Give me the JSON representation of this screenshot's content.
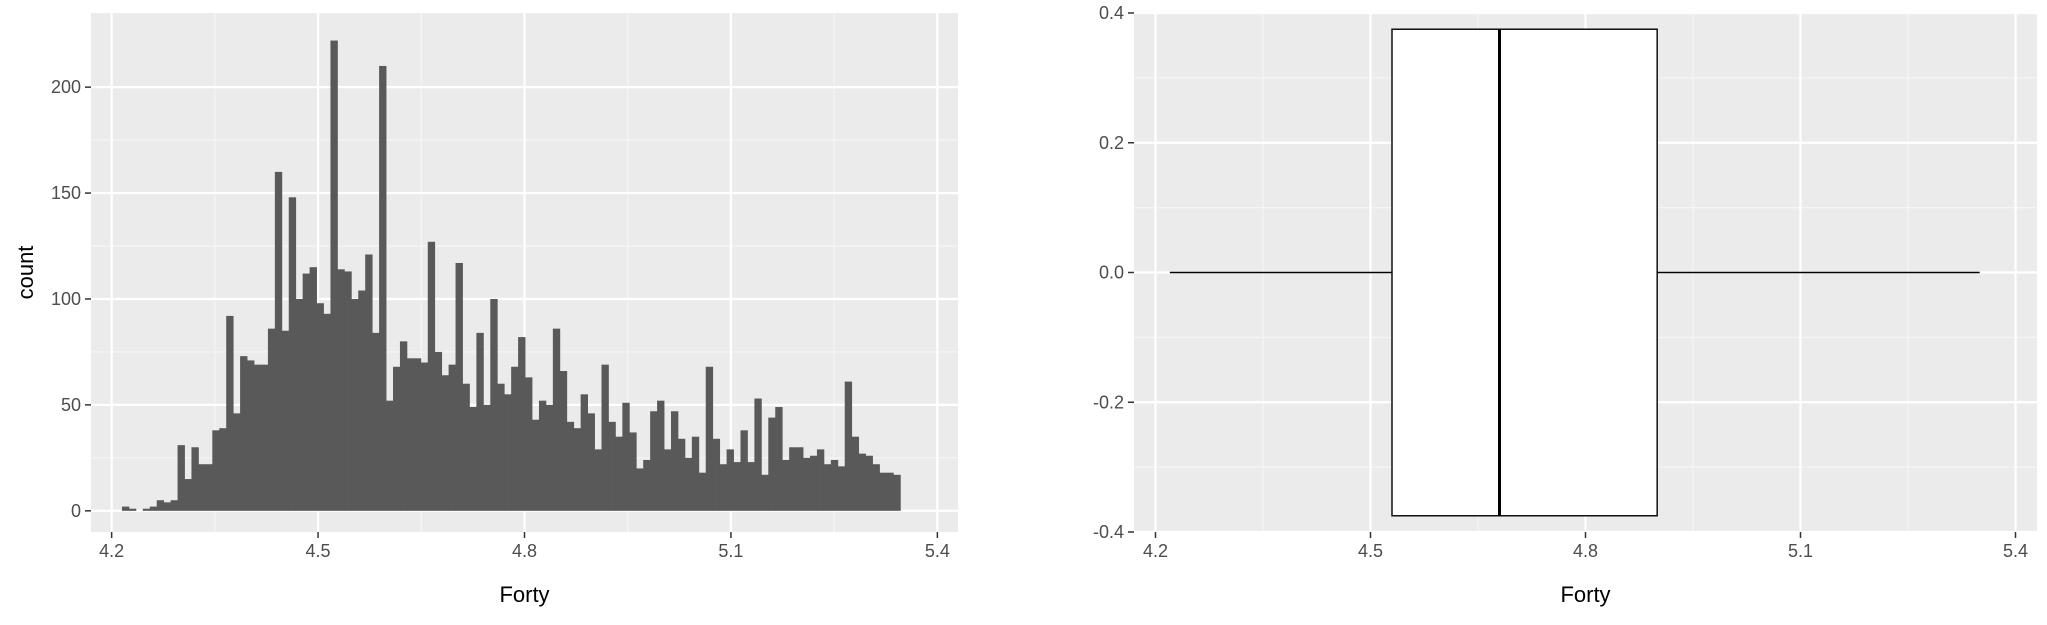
{
  "colors": {
    "panel_bg": "#EBEBEB",
    "grid_major": "#FFFFFF",
    "grid_minor": "#F5F5F5",
    "bar_fill": "#595959",
    "box_fill": "#FFFFFF",
    "box_line": "#000000",
    "tick_text": "#4D4D4D",
    "axis_title": "#000000"
  },
  "chart_data": [
    {
      "type": "bar",
      "subtype": "histogram",
      "xlabel": "Forty",
      "ylabel": "count",
      "xlim": [
        4.17,
        5.43
      ],
      "ylim": [
        -10,
        235
      ],
      "x_ticks": [
        4.2,
        4.5,
        4.8,
        5.1,
        5.4
      ],
      "x_tick_labels": [
        "4.2",
        "4.5",
        "4.8",
        "5.1",
        "5.4"
      ],
      "y_ticks": [
        0,
        50,
        100,
        150,
        200
      ],
      "y_tick_labels": [
        "0",
        "50",
        "100",
        "150",
        "200"
      ],
      "grid": true,
      "bin_start": 4.215,
      "bin_width": 0.0101,
      "values": [
        2,
        1,
        0,
        1,
        2,
        5,
        4,
        5,
        31,
        15,
        30,
        22,
        22,
        38,
        39,
        92,
        46,
        73,
        71,
        69,
        69,
        86,
        160,
        85,
        148,
        100,
        112,
        115,
        98,
        93,
        222,
        114,
        113,
        100,
        104,
        121,
        84,
        210,
        52,
        68,
        80,
        72,
        72,
        70,
        127,
        75,
        64,
        69,
        117,
        60,
        49,
        84,
        50,
        100,
        60,
        55,
        68,
        82,
        63,
        43,
        52,
        50,
        86,
        66,
        42,
        39,
        55,
        46,
        29,
        69,
        42,
        35,
        51,
        37,
        20,
        24,
        47,
        52,
        29,
        47,
        34,
        25,
        35,
        18,
        68,
        34,
        22,
        29,
        23,
        38,
        23,
        53,
        17,
        44,
        49,
        24,
        30,
        30,
        25,
        26,
        29,
        22,
        24,
        21,
        61,
        35,
        27,
        26,
        22,
        18,
        18,
        17
      ]
    },
    {
      "type": "boxplot",
      "xlabel": "Forty",
      "ylabel": "",
      "xlim": [
        4.17,
        5.43
      ],
      "ylim": [
        -0.4,
        0.4
      ],
      "x_ticks": [
        4.2,
        4.5,
        4.8,
        5.1,
        5.4
      ],
      "x_tick_labels": [
        "4.2",
        "4.5",
        "4.8",
        "5.1",
        "5.4"
      ],
      "y_ticks": [
        -0.4,
        -0.2,
        0.0,
        0.2,
        0.4
      ],
      "y_tick_labels": [
        "-0.4",
        "-0.2",
        "0.0",
        "0.2",
        "0.4"
      ],
      "grid": true,
      "box": {
        "min": 4.22,
        "q1": 4.53,
        "median": 4.68,
        "q3": 4.9,
        "max": 5.35,
        "box_half_height": 0.375
      }
    }
  ]
}
